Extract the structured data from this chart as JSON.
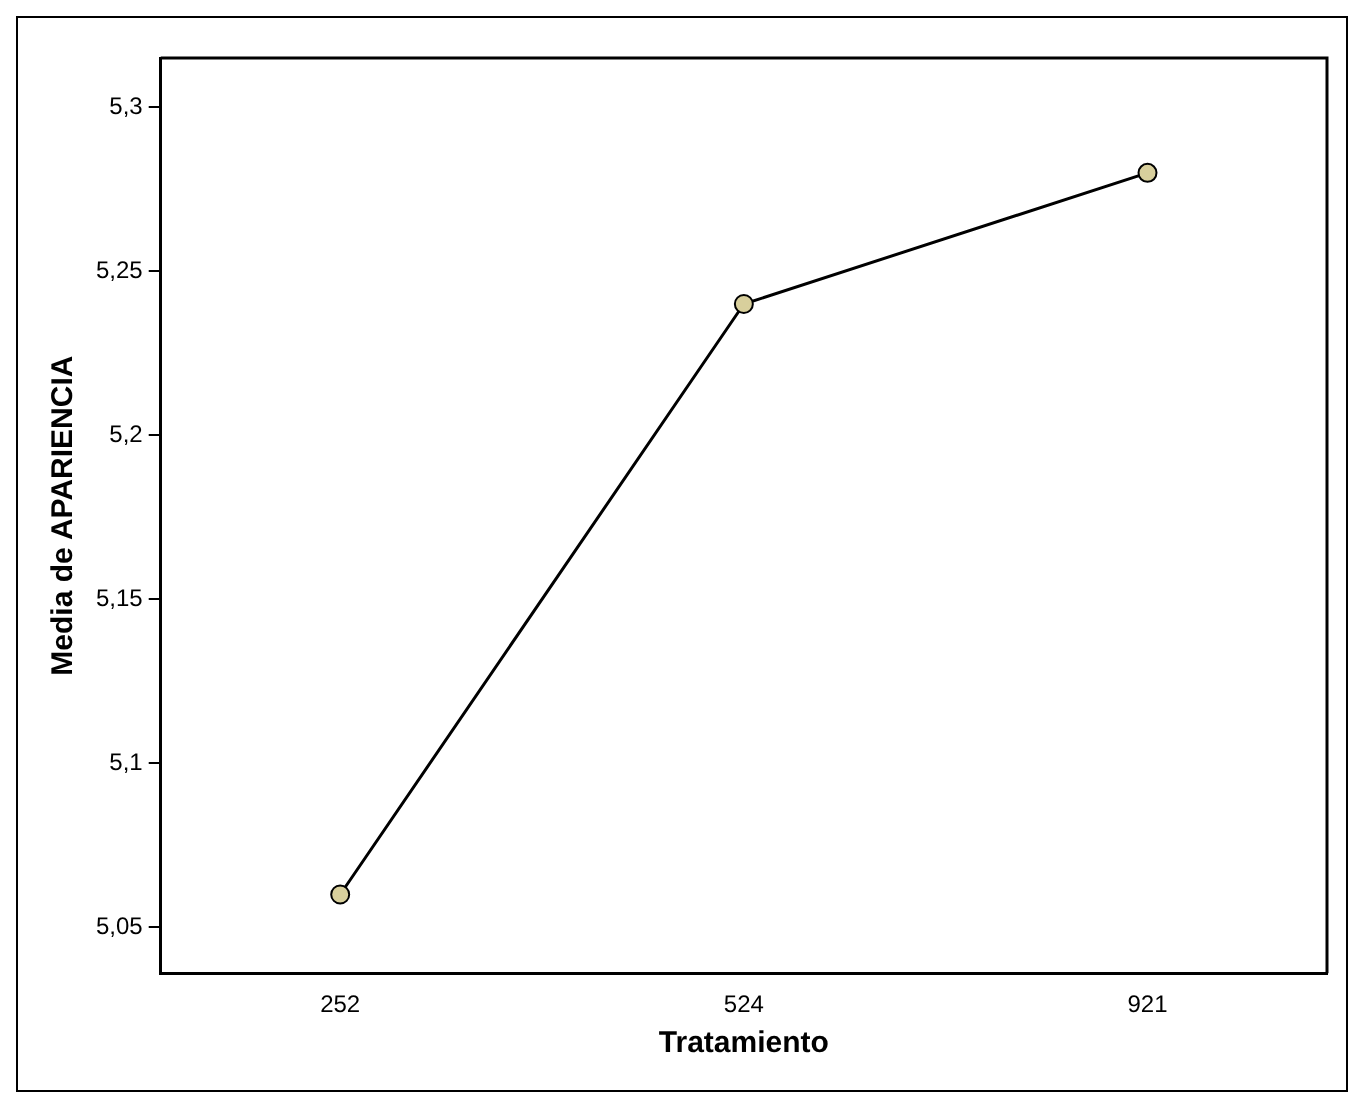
{
  "chart_data": {
    "type": "line",
    "xlabel": "Tratamiento",
    "ylabel": "Media de APARIENCIA",
    "categories": [
      "252",
      "524",
      "921"
    ],
    "series": [
      {
        "color": "#000000",
        "values": [
          5.06,
          5.24,
          5.28
        ]
      }
    ],
    "ylim": [
      5.036,
      5.315
    ],
    "yticks": [
      {
        "value": 5.05,
        "label": "5,05"
      },
      {
        "value": 5.1,
        "label": "5,1"
      },
      {
        "value": 5.15,
        "label": "5,15"
      },
      {
        "value": 5.2,
        "label": "5,2"
      },
      {
        "value": 5.25,
        "label": "5,25"
      },
      {
        "value": 5.3,
        "label": "5,3"
      }
    ],
    "marker": "circle",
    "line_style": "solid",
    "grid": false,
    "legend": false
  }
}
